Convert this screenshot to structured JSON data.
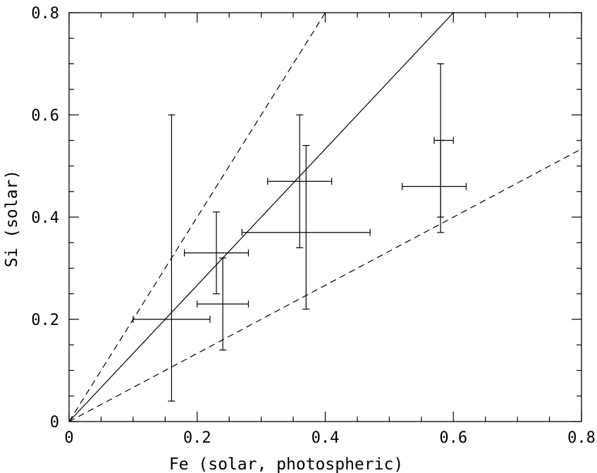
{
  "chart_data": {
    "type": "scatter",
    "title": "",
    "xlabel": "Fe (solar, photospheric)",
    "ylabel": "Si (solar)",
    "xlim": [
      0,
      0.8
    ],
    "ylim": [
      0,
      0.8
    ],
    "x_major_ticks": [
      0,
      0.2,
      0.4,
      0.6,
      0.8
    ],
    "y_major_ticks": [
      0,
      0.2,
      0.4,
      0.6,
      0.8
    ],
    "x_tick_labels": [
      "0",
      "0.2",
      "0.4",
      "0.6",
      "0.8"
    ],
    "y_tick_labels": [
      "0",
      "0.2",
      "0.4",
      "0.6",
      "0.8"
    ],
    "minor_tick_step": 0.05,
    "grid": false,
    "legend": "none",
    "points": [
      {
        "x": 0.16,
        "x_lo": 0.1,
        "x_hi": 0.22,
        "y": 0.2,
        "y_lo": 0.04,
        "y_hi": 0.6
      },
      {
        "x": 0.23,
        "x_lo": 0.18,
        "x_hi": 0.28,
        "y": 0.33,
        "y_lo": 0.25,
        "y_hi": 0.41
      },
      {
        "x": 0.24,
        "x_lo": 0.2,
        "x_hi": 0.28,
        "y": 0.23,
        "y_lo": 0.14,
        "y_hi": 0.32
      },
      {
        "x": 0.36,
        "x_lo": 0.31,
        "x_hi": 0.41,
        "y": 0.47,
        "y_lo": 0.34,
        "y_hi": 0.6
      },
      {
        "x": 0.37,
        "x_lo": 0.27,
        "x_hi": 0.47,
        "y": 0.37,
        "y_lo": 0.22,
        "y_hi": 0.54
      },
      {
        "x": 0.58,
        "x_lo": 0.52,
        "x_hi": 0.62,
        "y": 0.46,
        "y_lo": 0.37,
        "y_hi": 0.55
      },
      {
        "x": 0.58,
        "x_lo": 0.57,
        "x_hi": 0.6,
        "y": 0.55,
        "y_lo": 0.4,
        "y_hi": 0.7
      }
    ],
    "reference_lines": [
      {
        "style": "solid",
        "slope": 1.3333
      },
      {
        "style": "dashed",
        "slope": 2.0
      },
      {
        "style": "dashed",
        "slope": 0.6667
      }
    ]
  }
}
